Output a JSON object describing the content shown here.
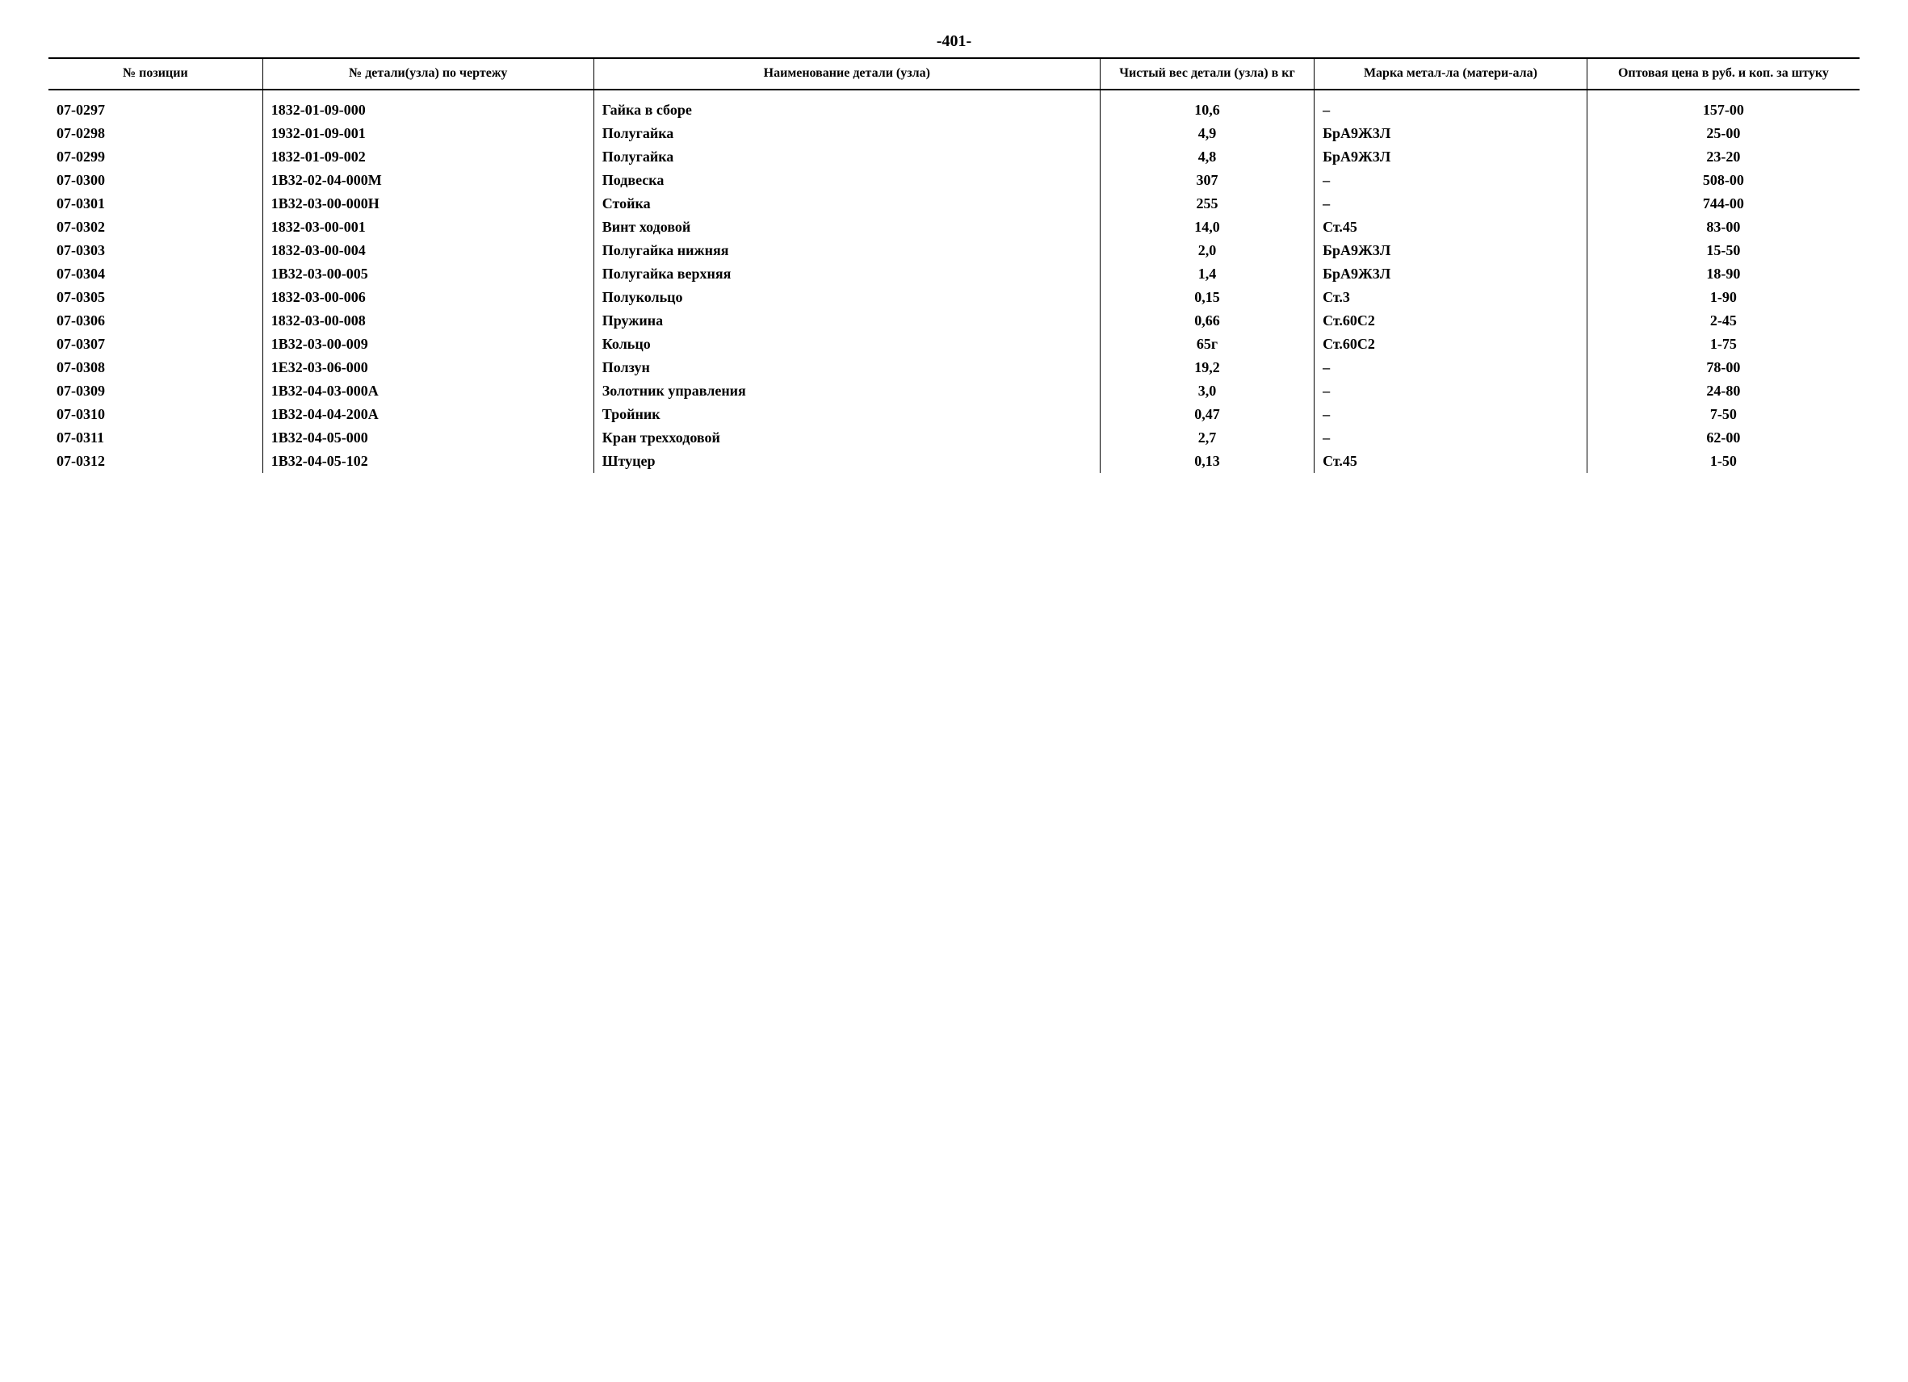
{
  "page_number": "-401-",
  "headers": {
    "position": "№ позиции",
    "drawing": "№ детали(узла) по чертежу",
    "name": "Наименование детали (узла)",
    "weight": "Чистый вес детали (узла) в кг",
    "material": "Марка метал-ла (матери-ала)",
    "price": "Оптовая цена в руб. и коп. за штуку"
  },
  "rows": [
    {
      "pos": "07-0297",
      "draw": "1832-01-09-000",
      "name": "Гайка в сборе",
      "weight": "10,6",
      "material": "–",
      "price": "157-00"
    },
    {
      "pos": "07-0298",
      "draw": "1932-01-09-001",
      "name": "Полугайка",
      "weight": "4,9",
      "material": "БрА9Ж3Л",
      "price": "25-00"
    },
    {
      "pos": "07-0299",
      "draw": "1832-01-09-002",
      "name": "Полугайка",
      "weight": "4,8",
      "material": "БрА9Ж3Л",
      "price": "23-20"
    },
    {
      "pos": "07-0300",
      "draw": "1В32-02-04-000М",
      "name": "Подвеска",
      "weight": "307",
      "material": "–",
      "price": "508-00"
    },
    {
      "pos": "07-0301",
      "draw": "1В32-03-00-000Н",
      "name": "Стойка",
      "weight": "255",
      "material": "–",
      "price": "744-00"
    },
    {
      "pos": "07-0302",
      "draw": "1832-03-00-001",
      "name": "Винт ходовой",
      "weight": "14,0",
      "material": "Ст.45",
      "price": "83-00"
    },
    {
      "pos": "07-0303",
      "draw": "1832-03-00-004",
      "name": "Полугайка нижняя",
      "weight": "2,0",
      "material": "БрА9Ж3Л",
      "price": "15-50"
    },
    {
      "pos": "07-0304",
      "draw": "1В32-03-00-005",
      "name": "Полугайка верхняя",
      "weight": "1,4",
      "material": "БрА9Ж3Л",
      "price": "18-90"
    },
    {
      "pos": "07-0305",
      "draw": "1832-03-00-006",
      "name": "Полукольцо",
      "weight": "0,15",
      "material": "Ст.3",
      "price": "1-90"
    },
    {
      "pos": "07-0306",
      "draw": "1832-03-00-008",
      "name": "Пружина",
      "weight": "0,66",
      "material": "Ст.60С2",
      "price": "2-45"
    },
    {
      "pos": "07-0307",
      "draw": "1В32-03-00-009",
      "name": "Кольцо",
      "weight": "65г",
      "material": "Ст.60С2",
      "price": "1-75"
    },
    {
      "pos": "07-0308",
      "draw": "1Е32-03-06-000",
      "name": "Ползун",
      "weight": "19,2",
      "material": "–",
      "price": "78-00"
    },
    {
      "pos": "07-0309",
      "draw": "1В32-04-03-000А",
      "name": "Золотник управления",
      "weight": "3,0",
      "material": "–",
      "price": "24-80"
    },
    {
      "pos": "07-0310",
      "draw": "1В32-04-04-200А",
      "name": "Тройник",
      "weight": "0,47",
      "material": "–",
      "price": "7-50"
    },
    {
      "pos": "07-0311",
      "draw": "1В32-04-05-000",
      "name": "Кран трехходовой",
      "weight": "2,7",
      "material": "–",
      "price": "62-00"
    },
    {
      "pos": "07-0312",
      "draw": "1В32-04-05-102",
      "name": "Штуцер",
      "weight": "0,13",
      "material": "Ст.45",
      "price": "1-50"
    }
  ]
}
